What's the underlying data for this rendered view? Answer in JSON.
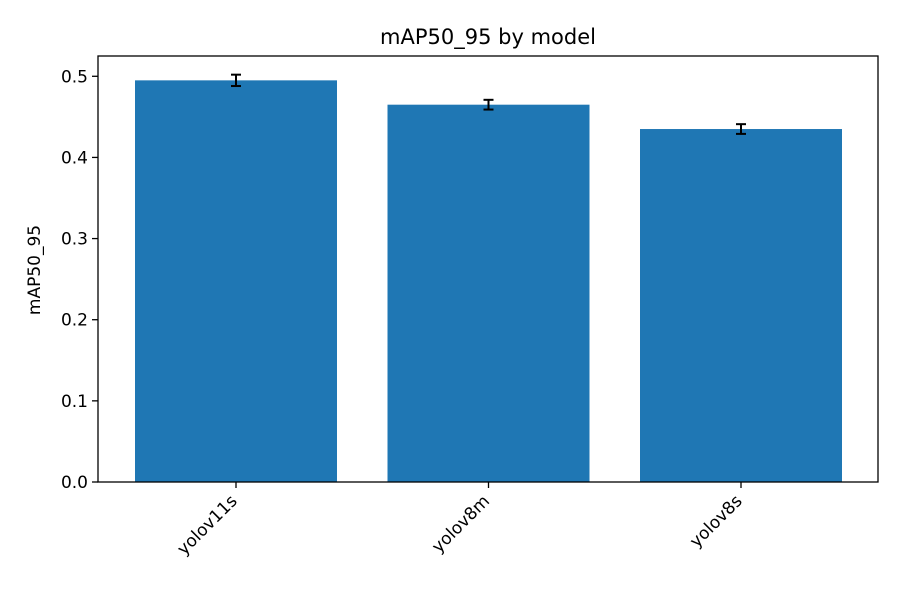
{
  "chart_data": {
    "type": "bar",
    "title": "mAP50_95 by model",
    "xlabel": "",
    "ylabel": "mAP50_95",
    "categories": [
      "yolov11s",
      "yolov8m",
      "yolov8s"
    ],
    "values": [
      0.495,
      0.465,
      0.435
    ],
    "error": [
      0.007,
      0.006,
      0.006
    ],
    "ylim": [
      0,
      0.525
    ],
    "yticks": [
      0.0,
      0.1,
      0.2,
      0.3,
      0.4,
      0.5
    ],
    "ytick_labels": [
      "0.0",
      "0.1",
      "0.2",
      "0.3",
      "0.4",
      "0.5"
    ],
    "grid": false,
    "bar_color": "#1f77b4",
    "error_color": "#000000"
  }
}
